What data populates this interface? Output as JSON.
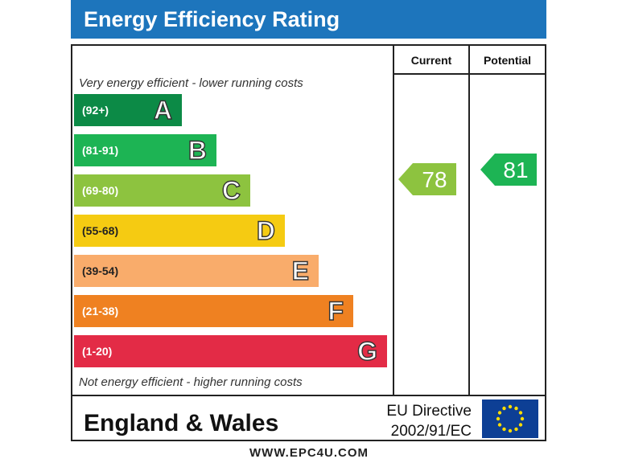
{
  "header": {
    "title": "Energy Efficiency Rating"
  },
  "columns": {
    "current": "Current",
    "potential": "Potential"
  },
  "notes": {
    "top": "Very energy efficient - lower running costs",
    "bottom": "Not energy efficient - higher running costs"
  },
  "footer": {
    "region": "England & Wales",
    "directive_line1": "EU Directive",
    "directive_line2": "2002/91/EC",
    "site": "WWW.EPC4U.COM"
  },
  "chart_data": {
    "type": "bar",
    "title": "Energy Efficiency Rating",
    "bands": [
      {
        "letter": "A",
        "range": "(92+)",
        "color": "#0c8a46"
      },
      {
        "letter": "B",
        "range": "(81-91)",
        "color": "#1db454"
      },
      {
        "letter": "C",
        "range": "(69-80)",
        "color": "#8dc33f"
      },
      {
        "letter": "D",
        "range": "(55-68)",
        "color": "#f5cb12"
      },
      {
        "letter": "E",
        "range": "(39-54)",
        "color": "#f9ac6b"
      },
      {
        "letter": "F",
        "range": "(21-38)",
        "color": "#ef8121"
      },
      {
        "letter": "G",
        "range": "(1-20)",
        "color": "#e32b46"
      }
    ],
    "current": {
      "value": 78,
      "band": "C",
      "color": "#8dc33f"
    },
    "potential": {
      "value": 81,
      "band": "B",
      "color": "#1db454"
    }
  }
}
